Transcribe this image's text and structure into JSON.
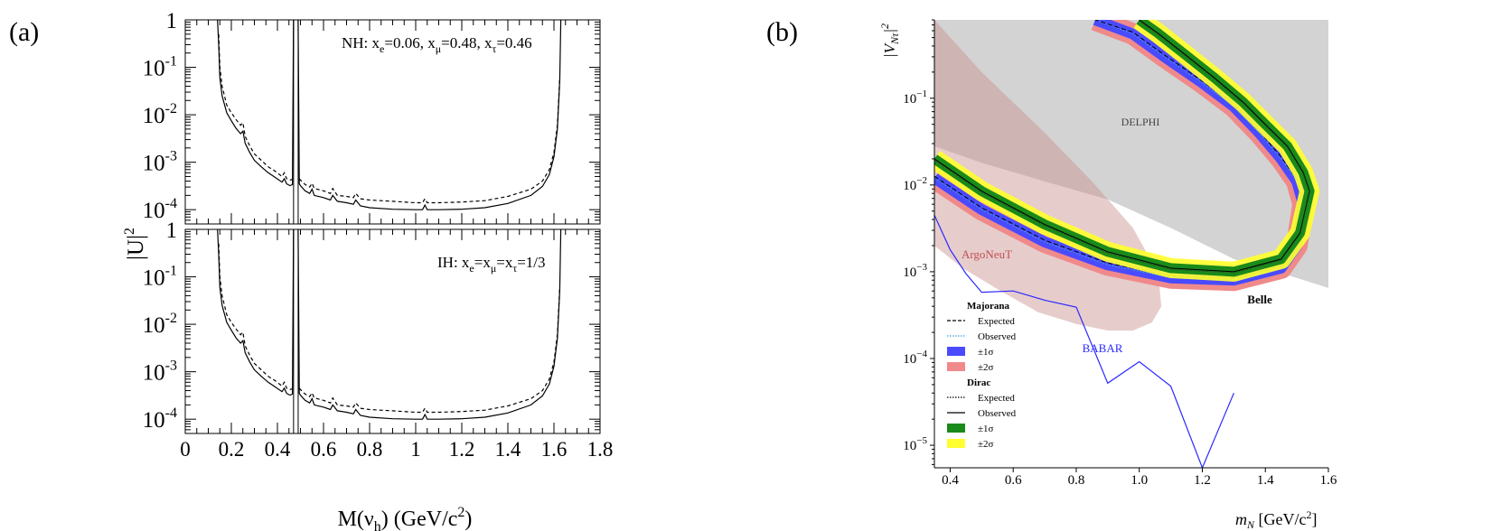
{
  "chart_data": [
    {
      "id": "a",
      "panel_label": "(a)",
      "type": "line",
      "log_y": true,
      "xlabel": "M(ν_h) (GeV/c^2)",
      "ylabel": "|U|^2",
      "xlim": [
        0,
        1.8
      ],
      "ylim": [
        5e-05,
        1
      ],
      "x_ticks": [
        "0",
        "0.2",
        "0.4",
        "0.6",
        "0.8",
        "1",
        "1.2",
        "1.4",
        "1.6",
        "1.8"
      ],
      "y_ticks": [
        {
          "base": "1",
          "exp": ""
        },
        {
          "base": "10",
          "exp": "-1"
        },
        {
          "base": "10",
          "exp": "-2"
        },
        {
          "base": "10",
          "exp": "-3"
        },
        {
          "base": "10",
          "exp": "-4"
        }
      ],
      "subpanels": [
        {
          "annotation": {
            "prefix": "NH: x",
            "e": "e",
            "e_val": "=0.06, x",
            "mu": "μ",
            "mu_val": "=0.48, x",
            "tau": "τ",
            "tau_val": "=0.46"
          },
          "series": [
            {
              "name": "solid",
              "style": "solid",
              "x": [
                0.14,
                0.145,
                0.15,
                0.16,
                0.18,
                0.2,
                0.22,
                0.24,
                0.25,
                0.26,
                0.28,
                0.3,
                0.33,
                0.36,
                0.39,
                0.42,
                0.43,
                0.44,
                0.455,
                0.465,
                0.47
              ],
              "y": [
                1,
                0.3,
                0.06,
                0.025,
                0.011,
                0.0075,
                0.0052,
                0.004,
                0.0045,
                0.0025,
                0.0016,
                0.0011,
                0.0008,
                0.0006,
                0.00048,
                0.00038,
                0.00045,
                0.00035,
                0.00032,
                0.00034,
                1
              ]
            },
            {
              "name": "solid",
              "style": "solid",
              "x": [
                0.49,
                0.495,
                0.5,
                0.52,
                0.54,
                0.55,
                0.56,
                0.6,
                0.63,
                0.64,
                0.66,
                0.7,
                0.73,
                0.74,
                0.76,
                0.8,
                0.9,
                1.0,
                1.03,
                1.04,
                1.05,
                1.1,
                1.2,
                1.3,
                1.4,
                1.5,
                1.55,
                1.58,
                1.6,
                1.615,
                1.625,
                1.63
              ],
              "y": [
                1,
                0.00035,
                0.00032,
                0.00025,
                0.00022,
                0.00027,
                0.0002,
                0.00018,
                0.00016,
                0.0002,
                0.00015,
                0.00014,
                0.00013,
                0.00016,
                0.00012,
                0.00011,
                0.000102,
                0.0001,
                0.0001,
                0.000125,
                0.0001,
                0.0001,
                0.000102,
                0.00011,
                0.000135,
                0.0002,
                0.00031,
                0.00055,
                0.0013,
                0.005,
                0.05,
                1
              ]
            },
            {
              "name": "dashed",
              "style": "dashed",
              "x": [
                0.145,
                0.15,
                0.16,
                0.18,
                0.2,
                0.22,
                0.24,
                0.25,
                0.26,
                0.28,
                0.3,
                0.33,
                0.36,
                0.39,
                0.42,
                0.43,
                0.44,
                0.455,
                0.465
              ],
              "y": [
                0.5,
                0.1,
                0.04,
                0.016,
                0.011,
                0.008,
                0.006,
                0.0068,
                0.0035,
                0.0022,
                0.0015,
                0.0011,
                0.0008,
                0.00065,
                0.0005,
                0.0006,
                0.00045,
                0.00042,
                0.00044
              ]
            },
            {
              "name": "dashed",
              "style": "dashed",
              "x": [
                0.495,
                0.5,
                0.52,
                0.54,
                0.55,
                0.56,
                0.6,
                0.63,
                0.64,
                0.66,
                0.7,
                0.73,
                0.74,
                0.76,
                0.8,
                0.9,
                1.0,
                1.03,
                1.04,
                1.05,
                1.1,
                1.2,
                1.3,
                1.4,
                1.5,
                1.55,
                1.58,
                1.6,
                1.615,
                1.625
              ],
              "y": [
                0.00045,
                0.00042,
                0.00034,
                0.0003,
                0.00036,
                0.00028,
                0.00025,
                0.00022,
                0.00028,
                0.0002,
                0.00019,
                0.00018,
                0.00022,
                0.00017,
                0.00016,
                0.00015,
                0.00014,
                0.00014,
                0.00017,
                0.00014,
                0.00014,
                0.000145,
                0.000155,
                0.00019,
                0.00027,
                0.0004,
                0.0007,
                0.0016,
                0.006,
                0.06
              ]
            }
          ]
        },
        {
          "annotation": {
            "prefix": "IH: x",
            "e": "e",
            "e_val": "=x",
            "mu": "μ",
            "mu_val": "=x",
            "tau": "τ",
            "tau_val": "=1/3"
          },
          "series": [
            {
              "name": "solid",
              "style": "solid",
              "x": [
                0.14,
                0.145,
                0.15,
                0.16,
                0.18,
                0.2,
                0.22,
                0.24,
                0.25,
                0.26,
                0.28,
                0.3,
                0.33,
                0.36,
                0.39,
                0.42,
                0.43,
                0.44,
                0.455,
                0.465,
                0.47
              ],
              "y": [
                1,
                0.3,
                0.06,
                0.025,
                0.011,
                0.0075,
                0.0052,
                0.004,
                0.0045,
                0.0025,
                0.0016,
                0.0011,
                0.0008,
                0.0006,
                0.00048,
                0.00038,
                0.00045,
                0.00035,
                0.00032,
                0.00034,
                1
              ]
            },
            {
              "name": "solid",
              "style": "solid",
              "x": [
                0.49,
                0.495,
                0.5,
                0.52,
                0.54,
                0.55,
                0.56,
                0.6,
                0.63,
                0.64,
                0.66,
                0.7,
                0.73,
                0.74,
                0.76,
                0.8,
                0.9,
                1.0,
                1.03,
                1.04,
                1.05,
                1.1,
                1.2,
                1.3,
                1.4,
                1.5,
                1.55,
                1.58,
                1.6,
                1.615,
                1.625,
                1.63
              ],
              "y": [
                1,
                0.00035,
                0.00032,
                0.00025,
                0.00022,
                0.00027,
                0.0002,
                0.00018,
                0.00016,
                0.0002,
                0.00015,
                0.00014,
                0.00013,
                0.00016,
                0.00012,
                0.00011,
                0.000102,
                0.0001,
                0.0001,
                0.000125,
                0.0001,
                0.0001,
                0.000102,
                0.00011,
                0.000135,
                0.0002,
                0.00031,
                0.00055,
                0.0013,
                0.005,
                0.05,
                1
              ]
            },
            {
              "name": "dashed",
              "style": "dashed",
              "x": [
                0.145,
                0.15,
                0.16,
                0.18,
                0.2,
                0.22,
                0.24,
                0.25,
                0.26,
                0.28,
                0.3,
                0.33,
                0.36,
                0.39,
                0.42,
                0.43,
                0.44,
                0.455,
                0.465
              ],
              "y": [
                0.5,
                0.1,
                0.04,
                0.016,
                0.011,
                0.008,
                0.006,
                0.0068,
                0.0035,
                0.0022,
                0.0015,
                0.0011,
                0.0008,
                0.00065,
                0.0005,
                0.0006,
                0.00045,
                0.00042,
                0.00044
              ]
            },
            {
              "name": "dashed",
              "style": "dashed",
              "x": [
                0.495,
                0.5,
                0.52,
                0.54,
                0.55,
                0.56,
                0.6,
                0.63,
                0.64,
                0.66,
                0.7,
                0.73,
                0.74,
                0.76,
                0.8,
                0.9,
                1.0,
                1.03,
                1.04,
                1.05,
                1.1,
                1.2,
                1.3,
                1.4,
                1.5,
                1.55,
                1.58,
                1.6,
                1.615,
                1.625
              ],
              "y": [
                0.00045,
                0.00042,
                0.00034,
                0.0003,
                0.00036,
                0.00028,
                0.00025,
                0.00022,
                0.00028,
                0.0002,
                0.00019,
                0.00018,
                0.00022,
                0.00017,
                0.00016,
                0.00015,
                0.00014,
                0.00014,
                0.00017,
                0.00014,
                0.00014,
                0.000145,
                0.000155,
                0.00019,
                0.00027,
                0.0004,
                0.0007,
                0.0016,
                0.006,
                0.06
              ]
            }
          ]
        }
      ]
    },
    {
      "id": "b",
      "panel_label": "(b)",
      "type": "line",
      "log_y": true,
      "xlabel_italic": "m",
      "xlabel_sub": "N",
      "xlabel_rest": " [GeV/c",
      "xlabel_sup": "2",
      "xlabel_close": "]",
      "ylabel": "|V_Nτ|^2",
      "xlim": [
        0.35,
        1.6
      ],
      "ylim": [
        5.5e-06,
        0.8
      ],
      "x_ticks": [
        "0.4",
        "0.6",
        "0.8",
        "1.0",
        "1.2",
        "1.4",
        "1.6"
      ],
      "y_ticks": [
        {
          "base": "10",
          "exp": "−1"
        },
        {
          "base": "10",
          "exp": "−2"
        },
        {
          "base": "10",
          "exp": "−3"
        },
        {
          "base": "10",
          "exp": "−4"
        },
        {
          "base": "10",
          "exp": "−5"
        }
      ],
      "regions": [
        {
          "name": "DELPHI",
          "color": "#d3d3d3",
          "upper_x": [
            0.35,
            1.6
          ],
          "upper_y": [
            0.8,
            0.8
          ],
          "lower_x": [
            0.35,
            0.5,
            0.7,
            0.9,
            1.1,
            1.3,
            1.5,
            1.6
          ],
          "lower_y": [
            0.028,
            0.018,
            0.011,
            0.0068,
            0.0032,
            0.0014,
            0.00085,
            0.00065
          ]
        },
        {
          "name": "ArgoNeuT",
          "color": "#c98d8d",
          "x": [
            0.35,
            0.5,
            0.7,
            0.85,
            0.98,
            1.06,
            1.07,
            1.04,
            0.98,
            0.9,
            0.8,
            0.68,
            0.56,
            0.44,
            0.35
          ],
          "y": [
            0.8,
            0.2,
            0.04,
            0.011,
            0.0032,
            0.00095,
            0.0004,
            0.00026,
            0.00021,
            0.00021,
            0.00025,
            0.00034,
            0.0006,
            0.0011,
            0.002
          ]
        }
      ],
      "series": [
        {
          "name": "BABAR",
          "color": "#2a2aff",
          "x": [
            0.35,
            0.4,
            0.45,
            0.5,
            0.6,
            0.7,
            0.8,
            0.9,
            1.0,
            1.1,
            1.2,
            1.3
          ],
          "y": [
            0.0045,
            0.0018,
            0.00095,
            0.00058,
            0.0006,
            0.00047,
            0.00039,
            5.2e-05,
            9.2e-05,
            4.8e-05,
            5.2e-06,
            4e-05
          ]
        },
        {
          "name": "Majorana band",
          "x": [
            0.35,
            0.5,
            0.7,
            0.9,
            1.1,
            1.3,
            1.45,
            1.5,
            1.52,
            1.5,
            1.45,
            1.38,
            1.3,
            1.2,
            1.08,
            0.98,
            0.86
          ],
          "y": [
            0.012,
            0.0052,
            0.0022,
            0.0012,
            0.00085,
            0.0008,
            0.0011,
            0.002,
            0.006,
            0.011,
            0.02,
            0.04,
            0.08,
            0.15,
            0.3,
            0.55,
            0.8
          ]
        },
        {
          "name": "Dirac band",
          "x": [
            0.35,
            0.5,
            0.7,
            0.9,
            1.1,
            1.3,
            1.45,
            1.51,
            1.54,
            1.52,
            1.47,
            1.4,
            1.33,
            1.24,
            1.14,
            1.06,
            1.0
          ],
          "y": [
            0.02,
            0.0085,
            0.0035,
            0.0017,
            0.0011,
            0.001,
            0.0014,
            0.0028,
            0.0085,
            0.014,
            0.028,
            0.05,
            0.09,
            0.17,
            0.33,
            0.56,
            0.8
          ]
        }
      ],
      "annotations": [
        {
          "text": "DELPHI",
          "color": "#444444"
        },
        {
          "text": "ArgoNeuT",
          "color": "#c05050"
        },
        {
          "text": "Belle",
          "color": "#000000"
        },
        {
          "text": "BABAR",
          "color": "#2a2aff"
        }
      ],
      "legend": {
        "groups": [
          {
            "title": "Majorana",
            "entries": [
              {
                "label": "Expected",
                "kind": "dashed",
                "color": "#000000"
              },
              {
                "label": "Observed",
                "kind": "dotted",
                "color": "#3aa0e0"
              },
              {
                "label": "±1σ",
                "kind": "box",
                "color": "#4a4aff"
              },
              {
                "label": "±2σ",
                "kind": "box",
                "color": "#f08a8a"
              }
            ]
          },
          {
            "title": "Dirac",
            "entries": [
              {
                "label": "Expected",
                "kind": "dotted",
                "color": "#000000"
              },
              {
                "label": "Observed",
                "kind": "solid",
                "color": "#000000"
              },
              {
                "label": "±1σ",
                "kind": "box",
                "color": "#1a8a1a"
              },
              {
                "label": "±2σ",
                "kind": "box",
                "color": "#ffff30"
              }
            ]
          }
        ]
      }
    }
  ]
}
